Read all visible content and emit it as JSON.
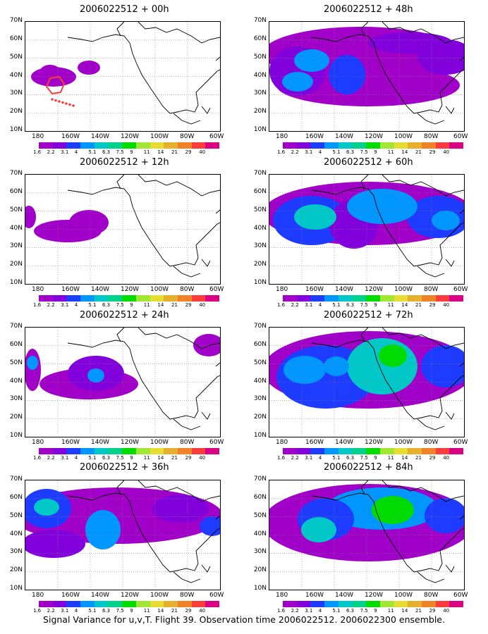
{
  "caption": "Signal Variance for u,v,T. Flight 39. Observation time 2006022512. 2006022300 ensemble.",
  "x_ticks": [
    "180",
    "160W",
    "140W",
    "120W",
    "100W",
    "80W",
    "60W"
  ],
  "y_ticks": [
    "70N",
    "60N",
    "50N",
    "40N",
    "30N",
    "20N",
    "10N"
  ],
  "colorbar": {
    "labels": [
      "1.6",
      "2.2",
      "3.1",
      "4",
      "5.1",
      "6.3",
      "7.5",
      "9",
      "11",
      "14",
      "21",
      "29",
      "40"
    ],
    "colors": [
      "#a000c8",
      "#8200dc",
      "#1e3cff",
      "#0096ff",
      "#00c8c8",
      "#00d28c",
      "#00dc00",
      "#a0e632",
      "#e6dc32",
      "#e6af2d",
      "#f08228",
      "#fa3c3c",
      "#dc0082"
    ]
  },
  "panels": [
    {
      "id": "p00",
      "title": "2006022512 + 00h"
    },
    {
      "id": "p48",
      "title": "2006022512 + 48h"
    },
    {
      "id": "p12",
      "title": "2006022512 + 12h"
    },
    {
      "id": "p60",
      "title": "2006022512 + 60h"
    },
    {
      "id": "p24",
      "title": "2006022512 + 24h"
    },
    {
      "id": "p72",
      "title": "2006022512 + 72h"
    },
    {
      "id": "p36",
      "title": "2006022512 + 36h"
    },
    {
      "id": "p84",
      "title": "2006022512 + 84h"
    }
  ]
}
